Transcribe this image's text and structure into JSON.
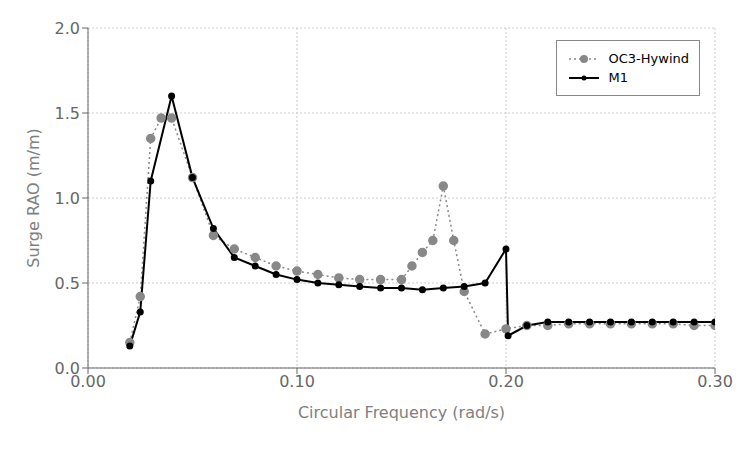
{
  "chart_data": {
    "type": "line",
    "xlabel": "Circular Frequency (rad/s)",
    "ylabel": "Surge RAO (m/m)",
    "xlim": [
      0.0,
      0.3
    ],
    "ylim": [
      0.0,
      2.0
    ],
    "xticks": [
      {
        "value": 0.0,
        "label": "0.00"
      },
      {
        "value": 0.1,
        "label": "0.10"
      },
      {
        "value": 0.2,
        "label": "0.20"
      },
      {
        "value": 0.3,
        "label": "0.30"
      }
    ],
    "yticks": [
      {
        "value": 0.0,
        "label": "0.0"
      },
      0.5,
      {
        "value": 1.0,
        "label": "1.0"
      },
      1.5,
      {
        "value": 2.0,
        "label": "2.0"
      }
    ],
    "grid": true,
    "legend": "upper right",
    "series": [
      {
        "name": "OC3-Hywind",
        "color": "#888888",
        "line_style": "dotted",
        "marker": "circle",
        "x": [
          0.02,
          0.025,
          0.03,
          0.035,
          0.04,
          0.05,
          0.06,
          0.07,
          0.08,
          0.09,
          0.1,
          0.11,
          0.12,
          0.13,
          0.14,
          0.15,
          0.155,
          0.16,
          0.165,
          0.17,
          0.175,
          0.18,
          0.19,
          0.2,
          0.21,
          0.22,
          0.23,
          0.24,
          0.25,
          0.26,
          0.27,
          0.28,
          0.29,
          0.3
        ],
        "values": [
          0.15,
          0.42,
          1.35,
          1.47,
          1.47,
          1.12,
          0.78,
          0.7,
          0.65,
          0.6,
          0.57,
          0.55,
          0.53,
          0.52,
          0.52,
          0.52,
          0.6,
          0.68,
          0.75,
          1.07,
          0.75,
          0.45,
          0.2,
          0.23,
          0.25,
          0.25,
          0.26,
          0.26,
          0.26,
          0.26,
          0.26,
          0.26,
          0.25,
          0.25
        ]
      },
      {
        "name": "M1",
        "color": "#000000",
        "line_style": "solid",
        "marker": "circle",
        "x": [
          0.02,
          0.025,
          0.03,
          0.04,
          0.05,
          0.06,
          0.07,
          0.08,
          0.09,
          0.1,
          0.11,
          0.12,
          0.13,
          0.14,
          0.15,
          0.16,
          0.17,
          0.18,
          0.19,
          0.2,
          0.201,
          0.21,
          0.22,
          0.23,
          0.24,
          0.25,
          0.26,
          0.27,
          0.28,
          0.29,
          0.3
        ],
        "values": [
          0.13,
          0.33,
          1.1,
          1.6,
          1.12,
          0.82,
          0.65,
          0.6,
          0.55,
          0.52,
          0.5,
          0.49,
          0.48,
          0.47,
          0.47,
          0.46,
          0.47,
          0.48,
          0.5,
          0.7,
          0.19,
          0.25,
          0.27,
          0.27,
          0.27,
          0.27,
          0.27,
          0.27,
          0.27,
          0.27,
          0.27
        ]
      }
    ]
  }
}
